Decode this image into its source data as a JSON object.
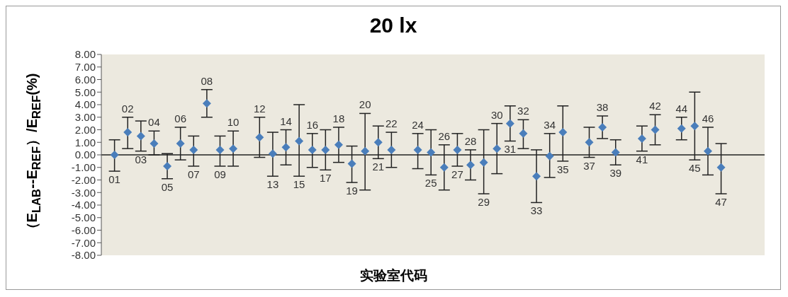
{
  "chart_data": {
    "type": "scatter",
    "title": "20 lx",
    "xlabel": "实验室代码",
    "ylabel": "（E$_{LAB}$--E$_{REF}$）/E$_{REF}$(%)",
    "categories": [
      "01",
      "02",
      "03",
      "04",
      "05",
      "06",
      "07",
      "08",
      "09",
      "10",
      null,
      "12",
      "13",
      "14",
      "15",
      "16",
      "17",
      "18",
      "19",
      "20",
      "21",
      "22",
      null,
      "24",
      "25",
      "26",
      "27",
      "28",
      "29",
      "30",
      "31",
      "32",
      "33",
      "34",
      "35",
      null,
      "37",
      "38",
      "39",
      null,
      "41",
      "42",
      null,
      "44",
      "45",
      "46",
      "47"
    ],
    "values": [
      0.0,
      1.8,
      1.5,
      0.9,
      -0.9,
      0.9,
      0.4,
      4.1,
      0.4,
      0.5,
      null,
      1.4,
      0.1,
      0.6,
      1.1,
      0.4,
      0.4,
      0.8,
      -0.7,
      0.3,
      1.0,
      0.4,
      null,
      0.4,
      0.2,
      -1.0,
      0.4,
      -0.8,
      -0.6,
      0.5,
      2.5,
      1.7,
      -1.7,
      -0.1,
      1.8,
      null,
      1.0,
      2.2,
      0.2,
      null,
      1.3,
      2.0,
      null,
      2.1,
      2.3,
      0.3,
      -1.0
    ],
    "errors": [
      [
        -1.3,
        1.2
      ],
      [
        0.5,
        3.0
      ],
      [
        0.3,
        2.7
      ],
      [
        0.0,
        1.9
      ],
      [
        -1.9,
        0.1
      ],
      [
        -0.4,
        2.2
      ],
      [
        -0.9,
        1.5
      ],
      [
        3.0,
        5.2
      ],
      [
        -0.9,
        1.5
      ],
      [
        -0.9,
        1.9
      ],
      null,
      [
        -0.2,
        3.0
      ],
      [
        -1.7,
        1.8
      ],
      [
        -0.8,
        2.0
      ],
      [
        -1.7,
        4.0
      ],
      [
        -1.0,
        1.7
      ],
      [
        -1.2,
        2.0
      ],
      [
        -0.6,
        2.2
      ],
      [
        -2.2,
        0.7
      ],
      [
        -2.8,
        3.3
      ],
      [
        -0.3,
        2.3
      ],
      [
        -1.0,
        1.8
      ],
      null,
      [
        -1.1,
        1.7
      ],
      [
        -1.6,
        2.0
      ],
      [
        -2.8,
        0.8
      ],
      [
        -0.9,
        1.7
      ],
      [
        -2.0,
        0.4
      ],
      [
        -3.1,
        2.0
      ],
      [
        -1.5,
        2.5
      ],
      [
        1.1,
        3.9
      ],
      [
        0.5,
        2.8
      ],
      [
        -3.8,
        0.4
      ],
      [
        -1.8,
        1.7
      ],
      [
        -0.5,
        3.9
      ],
      null,
      [
        -0.2,
        2.2
      ],
      [
        1.3,
        3.1
      ],
      [
        -0.8,
        1.2
      ],
      null,
      [
        0.3,
        2.3
      ],
      [
        0.8,
        3.2
      ],
      null,
      [
        1.2,
        3.0
      ],
      [
        -0.4,
        5.0
      ],
      [
        -1.6,
        2.2
      ],
      [
        -3.1,
        0.9
      ]
    ],
    "color": "#4a7ebb",
    "marker": "diamond",
    "grid": false,
    "legend": false,
    "ylim": [
      -8,
      8
    ],
    "yticks": [
      {
        "value": -8,
        "label": "-8.00"
      },
      {
        "value": -7,
        "label": "-7.00"
      },
      {
        "value": -6,
        "label": "-6.00"
      },
      {
        "value": -5,
        "label": "-5.00"
      },
      {
        "value": -4,
        "label": "-4.00"
      },
      {
        "value": -3,
        "label": "-3.00"
      },
      {
        "value": -2,
        "label": "-2.00"
      },
      {
        "value": -1,
        "label": "-1.00"
      },
      {
        "value": 0,
        "label": "0.00"
      },
      {
        "value": 1,
        "label": "1.00"
      },
      {
        "value": 2,
        "label": "2.00"
      },
      {
        "value": 3,
        "label": "3.00"
      },
      {
        "value": 4,
        "label": "4.00"
      },
      {
        "value": 5,
        "label": "5.00"
      },
      {
        "value": 6,
        "label": "6.00"
      },
      {
        "value": 7,
        "label": "7.00"
      },
      {
        "value": 8,
        "label": "8.00"
      }
    ]
  }
}
